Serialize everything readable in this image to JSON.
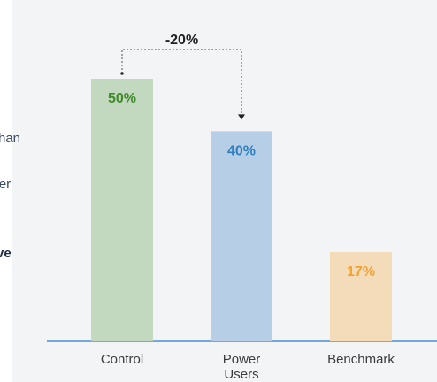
{
  "side_fragments": [
    {
      "text": "han",
      "bold": false
    },
    {
      "text": "wer",
      "bold": false
    },
    {
      "text": "ve",
      "bold": true
    }
  ],
  "chart_data": {
    "type": "bar",
    "categories": [
      [
        "Control"
      ],
      [
        "Power",
        "Users"
      ],
      [
        "Benchmark"
      ]
    ],
    "values": [
      50,
      40,
      17
    ],
    "labels": [
      "50%",
      "40%",
      "17%"
    ],
    "bar_colors": [
      "#c2d8bf",
      "#b7cfe6",
      "#f4dbb9"
    ],
    "label_colors": [
      "#3f8a2b",
      "#2d7fc2",
      "#f0a330"
    ],
    "ylim": [
      0,
      50
    ],
    "annotation": {
      "text": "-20%",
      "from": 0,
      "to": 1
    }
  },
  "colors": {
    "axis": "#4a90d9",
    "background": "#f3f4f6"
  }
}
